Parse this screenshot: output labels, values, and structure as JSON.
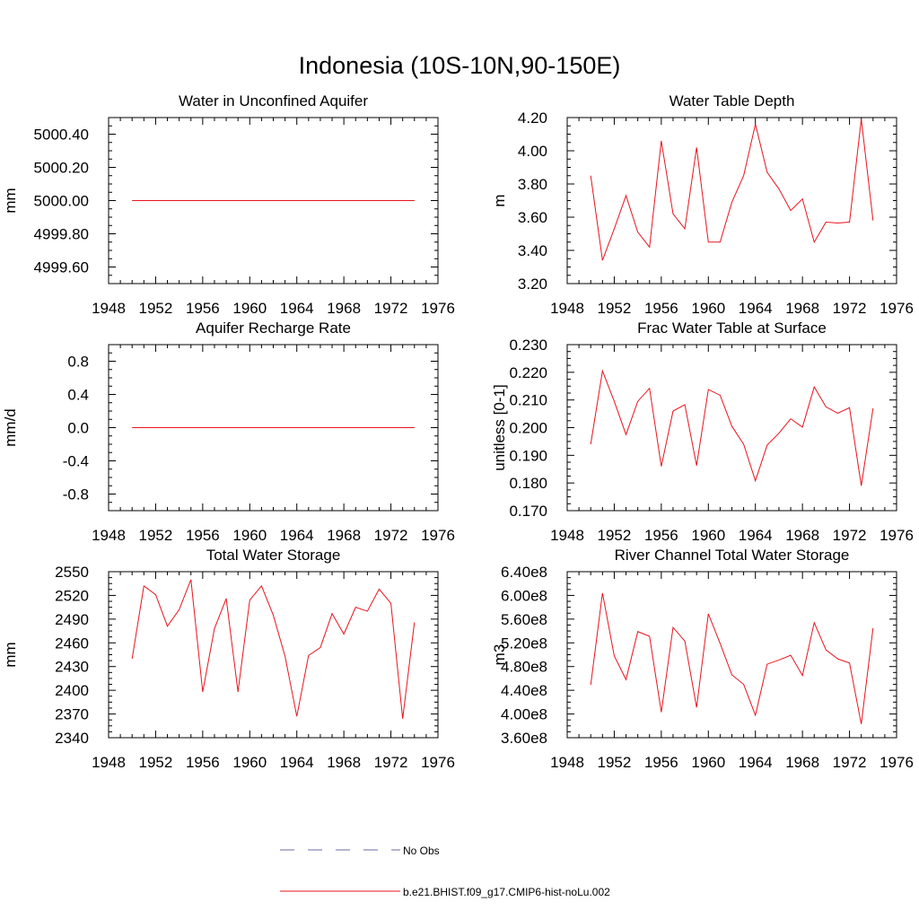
{
  "figure": {
    "title": "Indonesia (10S-10N,90-150E)"
  },
  "legend": {
    "items": [
      {
        "label": "No Obs",
        "color": "#6a6aa8",
        "style": "dashed"
      },
      {
        "label": "b.e21.BHIST.f09_g17.CMIP6-hist-noLu.002",
        "color": "#e8141e",
        "style": "solid"
      }
    ]
  },
  "chart_data": [
    {
      "type": "line",
      "title": "Water in Unconfined Aquifer",
      "ylabel": "mm",
      "xlim": [
        1948,
        1976
      ],
      "ylim": [
        4999.5,
        5000.5
      ],
      "xticks": [
        1948,
        1952,
        1956,
        1960,
        1964,
        1968,
        1972,
        1976
      ],
      "yticks": [
        4999.6,
        4999.8,
        5000.0,
        5000.2,
        5000.4
      ],
      "ytick_labels": [
        "4999.60",
        "4999.80",
        "5000.00",
        "5000.20",
        "5000.40"
      ],
      "x": [
        1950,
        1951,
        1952,
        1953,
        1954,
        1955,
        1956,
        1957,
        1958,
        1959,
        1960,
        1961,
        1962,
        1963,
        1964,
        1965,
        1966,
        1967,
        1968,
        1969,
        1970,
        1971,
        1972,
        1973,
        1974
      ],
      "series": [
        {
          "values": [
            5000,
            5000,
            5000,
            5000,
            5000,
            5000,
            5000,
            5000,
            5000,
            5000,
            5000,
            5000,
            5000,
            5000,
            5000,
            5000,
            5000,
            5000,
            5000,
            5000,
            5000,
            5000,
            5000,
            5000,
            5000
          ],
          "color": "#e8141e"
        }
      ]
    },
    {
      "type": "line",
      "title": "Water Table Depth",
      "ylabel": "m",
      "xlim": [
        1948,
        1976
      ],
      "ylim": [
        3.2,
        4.2
      ],
      "xticks": [
        1948,
        1952,
        1956,
        1960,
        1964,
        1968,
        1972,
        1976
      ],
      "yticks": [
        3.2,
        3.4,
        3.6,
        3.8,
        4.0,
        4.2
      ],
      "ytick_labels": [
        "3.20",
        "3.40",
        "3.60",
        "3.80",
        "4.00",
        "4.20"
      ],
      "x": [
        1950,
        1951,
        1952,
        1953,
        1954,
        1955,
        1956,
        1957,
        1958,
        1959,
        1960,
        1961,
        1962,
        1963,
        1964,
        1965,
        1966,
        1967,
        1968,
        1969,
        1970,
        1971,
        1972,
        1973,
        1974
      ],
      "series": [
        {
          "values": [
            3.85,
            3.34,
            3.53,
            3.73,
            3.51,
            3.42,
            4.06,
            3.62,
            3.53,
            4.02,
            3.45,
            3.45,
            3.69,
            3.85,
            4.16,
            3.87,
            3.77,
            3.64,
            3.71,
            3.45,
            3.57,
            3.565,
            3.57,
            4.19,
            3.58
          ],
          "color": "#e8141e"
        }
      ]
    },
    {
      "type": "line",
      "title": "Aquifer Recharge Rate",
      "ylabel": "mm/d",
      "xlim": [
        1948,
        1976
      ],
      "ylim": [
        -1.0,
        1.0
      ],
      "xticks": [
        1948,
        1952,
        1956,
        1960,
        1964,
        1968,
        1972,
        1976
      ],
      "yticks": [
        -0.8,
        -0.4,
        0.0,
        0.4,
        0.8
      ],
      "ytick_labels": [
        "-0.8",
        "-0.4",
        "0.0",
        "0.4",
        "0.8"
      ],
      "x": [
        1950,
        1951,
        1952,
        1953,
        1954,
        1955,
        1956,
        1957,
        1958,
        1959,
        1960,
        1961,
        1962,
        1963,
        1964,
        1965,
        1966,
        1967,
        1968,
        1969,
        1970,
        1971,
        1972,
        1973,
        1974
      ],
      "series": [
        {
          "values": [
            0,
            0,
            0,
            0,
            0,
            0,
            0,
            0,
            0,
            0,
            0,
            0,
            0,
            0,
            0,
            0,
            0,
            0,
            0,
            0,
            0,
            0,
            0,
            0,
            0
          ],
          "color": "#e8141e"
        }
      ]
    },
    {
      "type": "line",
      "title": "Frac Water Table at Surface",
      "ylabel": "unitless [0-1]",
      "xlim": [
        1948,
        1976
      ],
      "ylim": [
        0.17,
        0.23
      ],
      "xticks": [
        1948,
        1952,
        1956,
        1960,
        1964,
        1968,
        1972,
        1976
      ],
      "yticks": [
        0.17,
        0.18,
        0.19,
        0.2,
        0.21,
        0.22,
        0.23
      ],
      "ytick_labels": [
        "0.170",
        "0.180",
        "0.190",
        "0.200",
        "0.210",
        "0.220",
        "0.230"
      ],
      "x": [
        1950,
        1951,
        1952,
        1953,
        1954,
        1955,
        1956,
        1957,
        1958,
        1959,
        1960,
        1961,
        1962,
        1963,
        1964,
        1965,
        1966,
        1967,
        1968,
        1969,
        1970,
        1971,
        1972,
        1973,
        1974
      ],
      "series": [
        {
          "values": [
            0.194,
            0.2205,
            0.2095,
            0.1975,
            0.2095,
            0.2142,
            0.186,
            0.206,
            0.2083,
            0.1863,
            0.2138,
            0.2117,
            0.2005,
            0.194,
            0.1808,
            0.1937,
            0.198,
            0.2032,
            0.2002,
            0.2147,
            0.2075,
            0.2052,
            0.2072,
            0.179,
            0.207
          ],
          "color": "#e8141e"
        }
      ]
    },
    {
      "type": "line",
      "title": "Total Water Storage",
      "ylabel": "mm",
      "xlim": [
        1948,
        1976
      ],
      "ylim": [
        2340,
        2550
      ],
      "xticks": [
        1948,
        1952,
        1956,
        1960,
        1964,
        1968,
        1972,
        1976
      ],
      "yticks": [
        2340,
        2370,
        2400,
        2430,
        2460,
        2490,
        2520,
        2550
      ],
      "ytick_labels": [
        "2340",
        "2370",
        "2400",
        "2430",
        "2460",
        "2490",
        "2520",
        "2550"
      ],
      "x": [
        1950,
        1951,
        1952,
        1953,
        1954,
        1955,
        1956,
        1957,
        1958,
        1959,
        1960,
        1961,
        1962,
        1963,
        1964,
        1965,
        1966,
        1967,
        1968,
        1969,
        1970,
        1971,
        1972,
        1973,
        1974
      ],
      "series": [
        {
          "values": [
            2440,
            2532,
            2521,
            2481,
            2502,
            2540,
            2398,
            2478,
            2516,
            2398,
            2514,
            2532,
            2495,
            2443,
            2367,
            2444,
            2454,
            2497,
            2471,
            2505,
            2500,
            2528,
            2510,
            2364,
            2486
          ],
          "color": "#e8141e"
        }
      ]
    },
    {
      "type": "line",
      "title": "River Channel Total Water Storage",
      "ylabel": "m3",
      "xlim": [
        1948,
        1976
      ],
      "ylim": [
        360000000,
        640000000
      ],
      "xticks": [
        1948,
        1952,
        1956,
        1960,
        1964,
        1968,
        1972,
        1976
      ],
      "yticks": [
        360000000,
        400000000,
        440000000,
        480000000,
        520000000,
        560000000,
        600000000,
        640000000
      ],
      "ytick_labels": [
        "3.60e8",
        "4.00e8",
        "4.40e8",
        "4.80e8",
        "5.20e8",
        "5.60e8",
        "6.00e8",
        "6.40e8"
      ],
      "x": [
        1950,
        1951,
        1952,
        1953,
        1954,
        1955,
        1956,
        1957,
        1958,
        1959,
        1960,
        1961,
        1962,
        1963,
        1964,
        1965,
        1966,
        1967,
        1968,
        1969,
        1970,
        1971,
        1972,
        1973,
        1974
      ],
      "series": [
        {
          "values": [
            449000000,
            604000000,
            498000000,
            458000000,
            539000000,
            531000000,
            403000000,
            546000000,
            523000000,
            411000000,
            569000000,
            519000000,
            466000000,
            450000000,
            398000000,
            484000000,
            491000000,
            499000000,
            465000000,
            554000000,
            508000000,
            493000000,
            486000000,
            383000000,
            545000000
          ],
          "color": "#e8141e"
        }
      ]
    }
  ]
}
